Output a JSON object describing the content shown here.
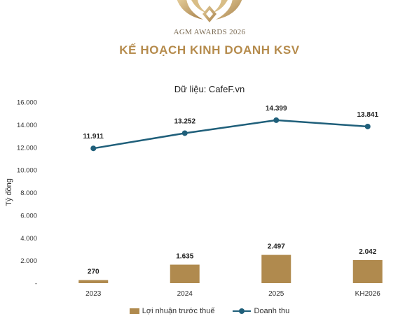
{
  "logo": {
    "text": "AGM AWARDS 2026"
  },
  "header": {
    "title": "KẾ HOẠCH KINH DOANH KSV",
    "source": "Dữ liệu: CafeF.vn"
  },
  "colors": {
    "title": "#b58b4c",
    "bar": "#b08a4e",
    "line": "#1f5f7a",
    "gold": "#c9a66b"
  },
  "chart_data": {
    "type": "bar",
    "categories": [
      "2023",
      "2024",
      "2025",
      "KH2026"
    ],
    "ylabel": "Tỷ đồng",
    "ylim": [
      0,
      16000
    ],
    "yticks": [
      {
        "value": 0,
        "label": "-"
      },
      {
        "value": 2000,
        "label": "2.000"
      },
      {
        "value": 4000,
        "label": "4.000"
      },
      {
        "value": 6000,
        "label": "6.000"
      },
      {
        "value": 8000,
        "label": "8.000"
      },
      {
        "value": 10000,
        "label": "10.000"
      },
      {
        "value": 12000,
        "label": "12.000"
      },
      {
        "value": 14000,
        "label": "14.000"
      },
      {
        "value": 16000,
        "label": "16.000"
      }
    ],
    "grid": false,
    "legend_position": "bottom",
    "series": [
      {
        "name": "Lợi nhuận trước thuế",
        "type": "bar",
        "values": [
          270,
          1635,
          2497,
          2042
        ],
        "labels": [
          "270",
          "1.635",
          "2.497",
          "2.042"
        ]
      },
      {
        "name": "Doanh thu",
        "type": "line",
        "values": [
          11911,
          13252,
          14399,
          13841
        ],
        "labels": [
          "11.911",
          "13.252",
          "14.399",
          "13.841"
        ]
      }
    ]
  }
}
